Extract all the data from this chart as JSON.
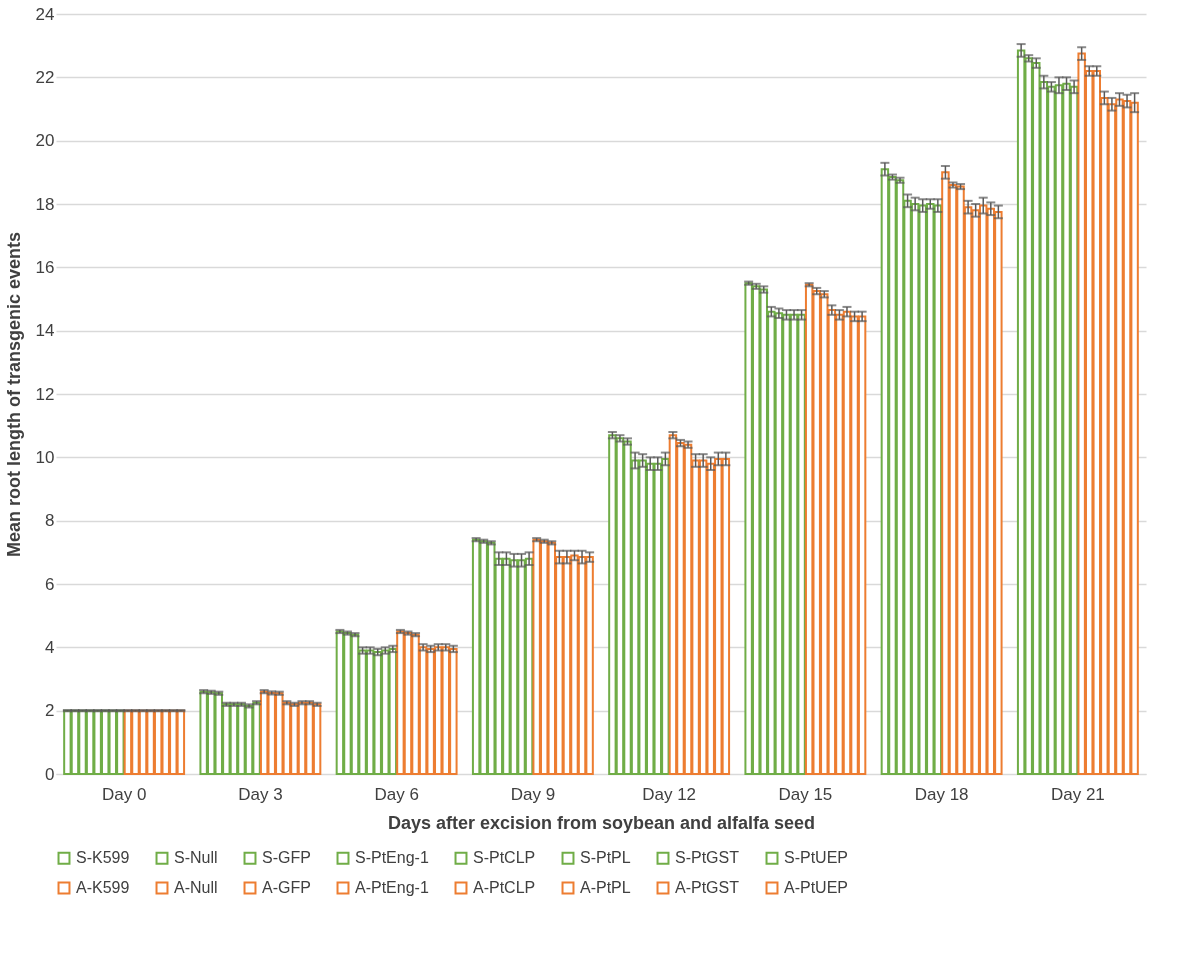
{
  "chart_data": {
    "type": "bar",
    "xlabel": "Days after excision from  soybean and alfalfa seed",
    "ylabel": "Mean root length of transgenic events",
    "categories": [
      "Day 0",
      "Day 3",
      "Day 6",
      "Day 9",
      "Day 12",
      "Day 15",
      "Day 18",
      "Day 21"
    ],
    "ylim": [
      0,
      24
    ],
    "yticks": [
      0,
      2,
      4,
      6,
      8,
      10,
      12,
      14,
      16,
      18,
      20,
      22,
      24
    ],
    "grid": "y",
    "legend": "bottom",
    "series": [
      {
        "name": "S-K599",
        "color": "#70ad47",
        "values": [
          2,
          2.6,
          4.5,
          7.4,
          10.7,
          15.5,
          19.1,
          22.85
        ],
        "errors": [
          0.02,
          0.05,
          0.05,
          0.05,
          0.1,
          0.05,
          0.2,
          0.2
        ]
      },
      {
        "name": "S-Null",
        "color": "#70ad47",
        "values": [
          2,
          2.58,
          4.45,
          7.35,
          10.6,
          15.4,
          18.85,
          22.6
        ],
        "errors": [
          0.02,
          0.05,
          0.05,
          0.05,
          0.1,
          0.08,
          0.08,
          0.1
        ]
      },
      {
        "name": "S-GFP",
        "color": "#70ad47",
        "values": [
          2,
          2.55,
          4.4,
          7.3,
          10.5,
          15.3,
          18.75,
          22.45
        ],
        "errors": [
          0.02,
          0.05,
          0.05,
          0.05,
          0.1,
          0.1,
          0.08,
          0.15
        ]
      },
      {
        "name": "S-PtEng-1",
        "color": "#70ad47",
        "values": [
          2,
          2.2,
          3.9,
          6.8,
          9.9,
          14.6,
          18.1,
          21.85
        ],
        "errors": [
          0.02,
          0.05,
          0.1,
          0.2,
          0.25,
          0.15,
          0.2,
          0.2
        ]
      },
      {
        "name": "S-PtCLP",
        "color": "#70ad47",
        "values": [
          2,
          2.2,
          3.9,
          6.8,
          9.9,
          14.55,
          18.0,
          21.7
        ],
        "errors": [
          0.02,
          0.05,
          0.1,
          0.2,
          0.2,
          0.15,
          0.2,
          0.15
        ]
      },
      {
        "name": "S-PtPL",
        "color": "#70ad47",
        "values": [
          2,
          2.2,
          3.85,
          6.75,
          9.8,
          14.5,
          17.95,
          21.75
        ],
        "errors": [
          0.02,
          0.05,
          0.1,
          0.2,
          0.2,
          0.15,
          0.2,
          0.25
        ]
      },
      {
        "name": "S-PtGST",
        "color": "#70ad47",
        "values": [
          2,
          2.15,
          3.9,
          6.75,
          9.8,
          14.5,
          18.0,
          21.8
        ],
        "errors": [
          0.02,
          0.05,
          0.1,
          0.2,
          0.2,
          0.15,
          0.15,
          0.2
        ]
      },
      {
        "name": "S-PtUEP",
        "color": "#70ad47",
        "values": [
          2,
          2.25,
          3.95,
          6.8,
          9.95,
          14.5,
          17.95,
          21.7
        ],
        "errors": [
          0.02,
          0.05,
          0.1,
          0.2,
          0.2,
          0.15,
          0.2,
          0.2
        ]
      },
      {
        "name": "A-K599",
        "color": "#ed7d31",
        "values": [
          2,
          2.6,
          4.5,
          7.4,
          10.7,
          15.45,
          19.0,
          22.75
        ],
        "errors": [
          0.02,
          0.05,
          0.05,
          0.05,
          0.1,
          0.05,
          0.2,
          0.2
        ]
      },
      {
        "name": "A-Null",
        "color": "#ed7d31",
        "values": [
          2,
          2.56,
          4.45,
          7.35,
          10.45,
          15.25,
          18.6,
          22.2
        ],
        "errors": [
          0.02,
          0.05,
          0.05,
          0.05,
          0.1,
          0.1,
          0.08,
          0.15
        ]
      },
      {
        "name": "A-GFP",
        "color": "#ed7d31",
        "values": [
          2,
          2.55,
          4.4,
          7.3,
          10.4,
          15.15,
          18.55,
          22.2
        ],
        "errors": [
          0.02,
          0.05,
          0.05,
          0.05,
          0.1,
          0.1,
          0.08,
          0.15
        ]
      },
      {
        "name": "A-PtEng-1",
        "color": "#ed7d31",
        "values": [
          2,
          2.25,
          4.0,
          6.85,
          9.9,
          14.65,
          17.9,
          21.35
        ],
        "errors": [
          0.02,
          0.05,
          0.1,
          0.2,
          0.2,
          0.15,
          0.2,
          0.2
        ]
      },
      {
        "name": "A-PtCLP",
        "color": "#ed7d31",
        "values": [
          2,
          2.2,
          3.95,
          6.85,
          9.9,
          14.5,
          17.8,
          21.15
        ],
        "errors": [
          0.02,
          0.05,
          0.1,
          0.2,
          0.2,
          0.15,
          0.2,
          0.2
        ]
      },
      {
        "name": "A-PtPL",
        "color": "#ed7d31",
        "values": [
          2,
          2.25,
          4.0,
          6.9,
          9.8,
          14.6,
          17.95,
          21.3
        ],
        "errors": [
          0.02,
          0.05,
          0.1,
          0.15,
          0.2,
          0.15,
          0.25,
          0.2
        ]
      },
      {
        "name": "A-PtGST",
        "color": "#ed7d31",
        "values": [
          2,
          2.25,
          4.0,
          6.85,
          9.95,
          14.45,
          17.85,
          21.25
        ],
        "errors": [
          0.02,
          0.05,
          0.1,
          0.2,
          0.2,
          0.15,
          0.2,
          0.2
        ]
      },
      {
        "name": "A-PtUEP",
        "color": "#ed7d31",
        "values": [
          2,
          2.2,
          3.95,
          6.85,
          9.95,
          14.45,
          17.75,
          21.2
        ],
        "errors": [
          0.02,
          0.05,
          0.1,
          0.15,
          0.2,
          0.15,
          0.2,
          0.3
        ]
      }
    ]
  }
}
